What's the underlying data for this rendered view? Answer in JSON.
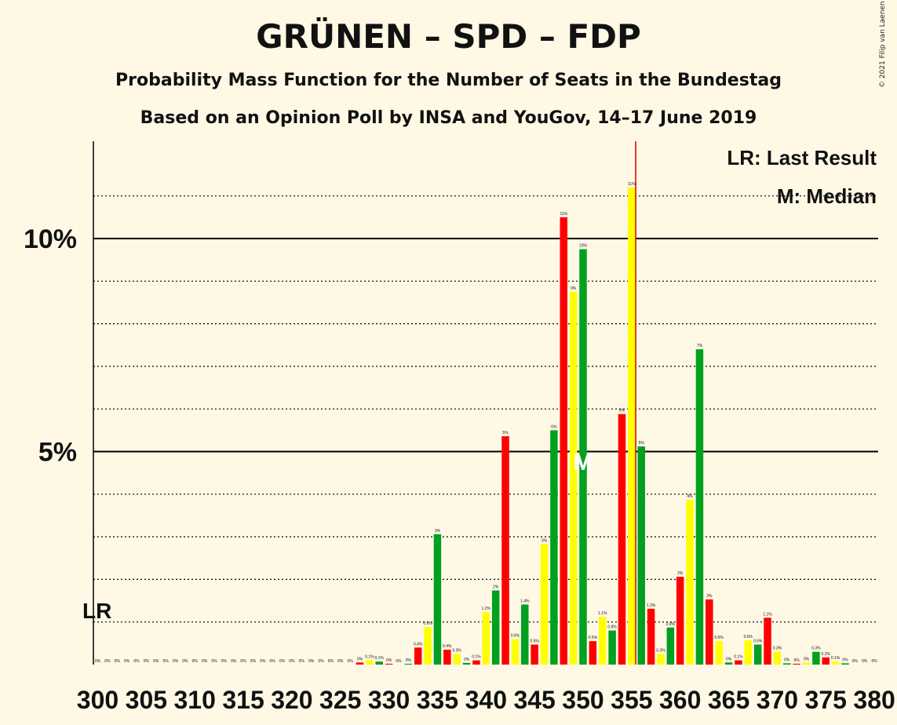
{
  "title": "GRÜNEN – SPD – FDP",
  "subtitle1": "Probability Mass Function for the Number of Seats in the Bundestag",
  "subtitle2": "Based on an Opinion Poll by INSA and YouGov, 14–17 June 2019",
  "copyright": "© 2021 Filip van Laenen",
  "legend": {
    "lr": "LR: Last Result",
    "median": "M: Median"
  },
  "markers": {
    "lr_label": "LR",
    "median_label": "M"
  },
  "colors": {
    "background": "#FFF8E5",
    "red": "#FF0000",
    "yellow": "#FFFF00",
    "green": "#00A020",
    "lr_line": "#CC0000"
  },
  "chart_data": {
    "type": "bar",
    "x_start": 300,
    "x_end": 380,
    "x_ticks": [
      300,
      305,
      310,
      315,
      320,
      325,
      330,
      335,
      340,
      345,
      350,
      355,
      360,
      365,
      370,
      375,
      380
    ],
    "y_tick_labels": [
      "5%",
      "10%"
    ],
    "y_ticks": [
      5,
      10
    ],
    "ylim": [
      0,
      12.2
    ],
    "last_result_seat": 355,
    "median_seat": 350,
    "values": [
      0,
      0,
      0,
      0,
      0,
      0,
      0,
      0,
      0,
      0,
      0,
      0,
      0,
      0,
      0,
      0,
      0,
      0,
      0,
      0,
      0,
      0,
      0,
      0,
      0,
      0,
      0,
      0.05,
      0.1,
      0.07,
      0.02,
      0,
      0.02,
      0.4,
      0.88,
      3.06,
      0.35,
      0.25,
      0.04,
      0.1,
      1.23,
      1.74,
      5.36,
      0.6,
      1.41,
      0.47,
      2.83,
      5.5,
      10.5,
      8.75,
      9.75,
      0.55,
      1.12,
      0.8,
      5.88,
      11.2,
      5.12,
      1.31,
      0.25,
      0.87,
      2.06,
      3.87,
      7.4,
      1.53,
      0.55,
      0.05,
      0.1,
      0.57,
      0.47,
      1.1,
      0.3,
      0.03,
      0.02,
      0.05,
      0.3,
      0.17,
      0.07,
      0.03,
      0,
      0,
      0
    ],
    "labels": [
      "0%",
      "0%",
      "0%",
      "0%",
      "0%",
      "0%",
      "0%",
      "0%",
      "0%",
      "0%",
      "0%",
      "0%",
      "0%",
      "0%",
      "0%",
      "0%",
      "0%",
      "0%",
      "0%",
      "0%",
      "0%",
      "0%",
      "0%",
      "0%",
      "0%",
      "0%",
      "0%",
      "0%",
      "0.1%",
      "0.1%",
      "0%",
      "0%",
      "0%",
      "0.4%",
      "0.9%",
      "3%",
      "0.4%",
      "0.3%",
      "0%",
      "0.1%",
      "1.2%",
      "2%",
      "5%",
      "0.6%",
      "1.4%",
      "0.5%",
      "3%",
      "6%",
      "11%",
      "9%",
      "10%",
      "0.5%",
      "1.1%",
      "0.8%",
      "6%",
      "11%",
      "5%",
      "1.3%",
      "0.3%",
      "0.9%",
      "2%",
      "4%",
      "7%",
      "2%",
      "0.6%",
      "0%",
      "0.1%",
      "0.6%",
      "0.5%",
      "1.1%",
      "0.3%",
      "0%",
      "0%",
      "0%",
      "0.3%",
      "0.2%",
      "0.1%",
      "0%",
      "0%",
      "0%",
      "0%"
    ],
    "color_cycle": [
      "red",
      "yellow",
      "green"
    ],
    "dotted_grid": [
      1,
      2,
      3,
      4,
      6,
      7,
      8,
      9,
      11
    ],
    "solid_grid": [
      5,
      10
    ]
  }
}
